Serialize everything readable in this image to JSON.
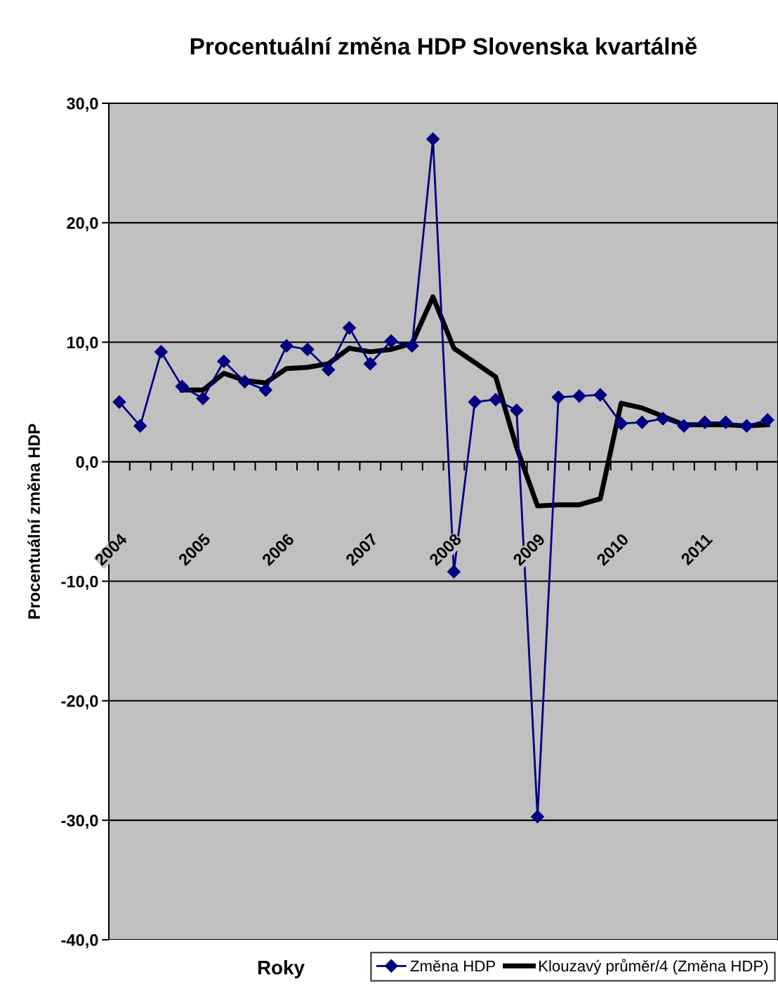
{
  "chart_data": {
    "type": "line",
    "title": "Procentuální změna HDP Slovenska kvartálně",
    "xlabel": "Roky",
    "ylabel": "Procentuální změna HDP",
    "categories": [
      "2004",
      null,
      null,
      null,
      "2005",
      null,
      null,
      null,
      "2006",
      null,
      null,
      null,
      "2007",
      null,
      null,
      null,
      "2008",
      null,
      null,
      null,
      "2009",
      null,
      null,
      null,
      "2010",
      null,
      null,
      null,
      "2011",
      null,
      null,
      null
    ],
    "series": [
      {
        "name": "Změna HDP",
        "color": "#000080",
        "marker": "diamond",
        "line_style": "solid",
        "values": [
          5.0,
          3.0,
          9.2,
          6.3,
          5.3,
          8.4,
          6.7,
          6.0,
          9.7,
          9.4,
          7.7,
          11.2,
          8.2,
          10.1,
          9.7,
          27.0,
          -9.2,
          5.0,
          5.2,
          4.3,
          -29.7,
          5.4,
          5.5,
          5.6,
          3.2,
          3.3,
          3.6,
          3.0,
          3.3,
          3.3,
          3.0,
          3.5
        ]
      },
      {
        "name": "Klouzavý průměr/4 (Změna HDP)",
        "color": "#000000",
        "marker": "none",
        "line_style": "solid",
        "values": [
          null,
          null,
          null,
          6.0,
          6.0,
          7.4,
          6.8,
          6.6,
          7.8,
          7.9,
          8.2,
          9.5,
          9.2,
          9.4,
          9.9,
          13.8,
          9.5,
          8.3,
          7.1,
          1.2,
          -3.7,
          -3.6,
          -3.6,
          -3.1,
          4.9,
          4.5,
          3.8,
          3.1,
          3.1,
          3.1,
          3.0,
          3.1
        ]
      }
    ],
    "ylim": [
      -40,
      30
    ],
    "yticks": [
      {
        "value": -40,
        "label": "-40,0"
      },
      {
        "value": -30,
        "label": "-30,0"
      },
      {
        "value": -20,
        "label": "-20,0"
      },
      {
        "value": -10,
        "label": "-10,0"
      },
      {
        "value": 0,
        "label": "0,0"
      },
      {
        "value": 10,
        "label": "10,0"
      },
      {
        "value": 20,
        "label": "20,0"
      },
      {
        "value": 30,
        "label": "30,0"
      }
    ],
    "grid": "y",
    "legend": "bottom"
  }
}
